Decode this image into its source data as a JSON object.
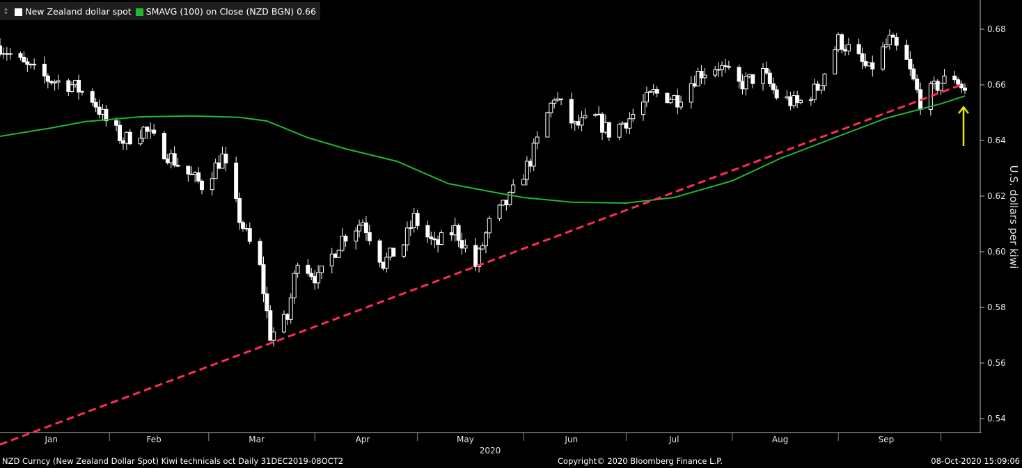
{
  "legend": {
    "items": [
      {
        "label": "New Zealand dollar spot",
        "color": "#ffffff"
      },
      {
        "label": "SMAVG (100)  on Close (NZD BGN) 0.66",
        "color": "#21b735"
      }
    ]
  },
  "footer": {
    "left": "NZD Curncy (New Zealand Dollar Spot) Kiwi technicals oct  Daily 31DEC2019-08OCT2",
    "center": "Copyright© 2020 Bloomberg Finance L.P.",
    "right": "08-Oct-2020 15:09:06"
  },
  "chart_data": {
    "type": "candlestick",
    "ylabel": "U.S. dollars per kiwi",
    "ylim": [
      0.535,
      0.69
    ],
    "yticks": [
      "0.54",
      "0.56",
      "0.58",
      "0.60",
      "0.62",
      "0.64",
      "0.66",
      "0.68"
    ],
    "xlim": [
      "2019-12-31",
      "2020-10-08"
    ],
    "x_year_label": "2020",
    "months": [
      {
        "label": "Jan",
        "date": "2020-01-15"
      },
      {
        "label": "Feb",
        "date": "2020-02-14"
      },
      {
        "label": "Mar",
        "date": "2020-03-15"
      },
      {
        "label": "Apr",
        "date": "2020-04-15"
      },
      {
        "label": "May",
        "date": "2020-05-15"
      },
      {
        "label": "Jun",
        "date": "2020-06-15"
      },
      {
        "label": "Jul",
        "date": "2020-07-15"
      },
      {
        "label": "Aug",
        "date": "2020-08-15"
      },
      {
        "label": "Sep",
        "date": "2020-09-15"
      }
    ],
    "month_boundaries": [
      "2020-02-01",
      "2020-03-01",
      "2020-04-01",
      "2020-05-01",
      "2020-06-01",
      "2020-07-01",
      "2020-08-01",
      "2020-09-01",
      "2020-10-01"
    ],
    "grid": false,
    "series": [
      {
        "name": "New Zealand dollar spot",
        "color": "#ffffff",
        "closes": [
          {
            "date": "2019-12-31",
            "value": 0.674
          },
          {
            "date": "2020-01-07",
            "value": 0.667
          },
          {
            "date": "2020-01-14",
            "value": 0.662
          },
          {
            "date": "2020-01-21",
            "value": 0.66
          },
          {
            "date": "2020-01-27",
            "value": 0.655
          },
          {
            "date": "2020-01-31",
            "value": 0.647
          },
          {
            "date": "2020-02-05",
            "value": 0.64
          },
          {
            "date": "2020-02-11",
            "value": 0.644
          },
          {
            "date": "2020-02-18",
            "value": 0.635
          },
          {
            "date": "2020-02-24",
            "value": 0.628
          },
          {
            "date": "2020-02-28",
            "value": 0.624
          },
          {
            "date": "2020-03-05",
            "value": 0.634
          },
          {
            "date": "2020-03-10",
            "value": 0.612
          },
          {
            "date": "2020-03-16",
            "value": 0.594
          },
          {
            "date": "2020-03-19",
            "value": 0.57
          },
          {
            "date": "2020-03-24",
            "value": 0.576
          },
          {
            "date": "2020-03-27",
            "value": 0.598
          },
          {
            "date": "2020-04-02",
            "value": 0.59
          },
          {
            "date": "2020-04-09",
            "value": 0.605
          },
          {
            "date": "2020-04-15",
            "value": 0.611
          },
          {
            "date": "2020-04-21",
            "value": 0.596
          },
          {
            "date": "2020-04-27",
            "value": 0.603
          },
          {
            "date": "2020-04-30",
            "value": 0.612
          },
          {
            "date": "2020-05-06",
            "value": 0.602
          },
          {
            "date": "2020-05-12",
            "value": 0.608
          },
          {
            "date": "2020-05-18",
            "value": 0.595
          },
          {
            "date": "2020-05-22",
            "value": 0.61
          },
          {
            "date": "2020-05-28",
            "value": 0.619
          },
          {
            "date": "2020-06-03",
            "value": 0.633
          },
          {
            "date": "2020-06-10",
            "value": 0.656
          },
          {
            "date": "2020-06-16",
            "value": 0.645
          },
          {
            "date": "2020-06-22",
            "value": 0.648
          },
          {
            "date": "2020-06-26",
            "value": 0.643
          },
          {
            "date": "2020-07-02",
            "value": 0.648
          },
          {
            "date": "2020-07-09",
            "value": 0.657
          },
          {
            "date": "2020-07-16",
            "value": 0.655
          },
          {
            "date": "2020-07-22",
            "value": 0.664
          },
          {
            "date": "2020-07-28",
            "value": 0.667
          },
          {
            "date": "2020-08-03",
            "value": 0.66
          },
          {
            "date": "2020-08-10",
            "value": 0.664
          },
          {
            "date": "2020-08-14",
            "value": 0.656
          },
          {
            "date": "2020-08-20",
            "value": 0.653
          },
          {
            "date": "2020-08-26",
            "value": 0.659
          },
          {
            "date": "2020-09-01",
            "value": 0.676
          },
          {
            "date": "2020-09-04",
            "value": 0.673
          },
          {
            "date": "2020-09-10",
            "value": 0.665
          },
          {
            "date": "2020-09-16",
            "value": 0.676
          },
          {
            "date": "2020-09-21",
            "value": 0.668
          },
          {
            "date": "2020-09-25",
            "value": 0.654
          },
          {
            "date": "2020-10-01",
            "value": 0.661
          },
          {
            "date": "2020-10-05",
            "value": 0.663
          },
          {
            "date": "2020-10-08",
            "value": 0.658
          }
        ]
      },
      {
        "name": "SMAVG (100)  on Close (NZD BGN) 0.66",
        "color": "#21b735",
        "values": [
          {
            "date": "2019-12-31",
            "value": 0.6415
          },
          {
            "date": "2020-01-15",
            "value": 0.6445
          },
          {
            "date": "2020-01-25",
            "value": 0.6468
          },
          {
            "date": "2020-02-10",
            "value": 0.6485
          },
          {
            "date": "2020-02-25",
            "value": 0.6488
          },
          {
            "date": "2020-03-10",
            "value": 0.6483
          },
          {
            "date": "2020-03-18",
            "value": 0.647
          },
          {
            "date": "2020-03-30",
            "value": 0.641
          },
          {
            "date": "2020-04-10",
            "value": 0.637
          },
          {
            "date": "2020-04-25",
            "value": 0.6325
          },
          {
            "date": "2020-05-10",
            "value": 0.6245
          },
          {
            "date": "2020-05-25",
            "value": 0.621
          },
          {
            "date": "2020-06-01",
            "value": 0.6195
          },
          {
            "date": "2020-06-15",
            "value": 0.6178
          },
          {
            "date": "2020-07-01",
            "value": 0.6175
          },
          {
            "date": "2020-07-15",
            "value": 0.6195
          },
          {
            "date": "2020-08-01",
            "value": 0.6255
          },
          {
            "date": "2020-08-15",
            "value": 0.6335
          },
          {
            "date": "2020-09-01",
            "value": 0.6415
          },
          {
            "date": "2020-09-15",
            "value": 0.648
          },
          {
            "date": "2020-10-01",
            "value": 0.6532
          },
          {
            "date": "2020-10-08",
            "value": 0.656
          }
        ]
      }
    ],
    "annotations": [
      {
        "type": "trendline",
        "style": "dashed",
        "color": "#ff2d55",
        "from": {
          "date": "2019-12-31",
          "value": 0.5307
        },
        "to": {
          "date": "2020-10-08",
          "value": 0.6605
        }
      },
      {
        "type": "arrow",
        "direction": "up",
        "color": "#f3e600",
        "from": {
          "date": "2020-10-08",
          "value": 0.638
        },
        "to": {
          "date": "2020-10-08",
          "value": 0.652
        }
      }
    ]
  }
}
